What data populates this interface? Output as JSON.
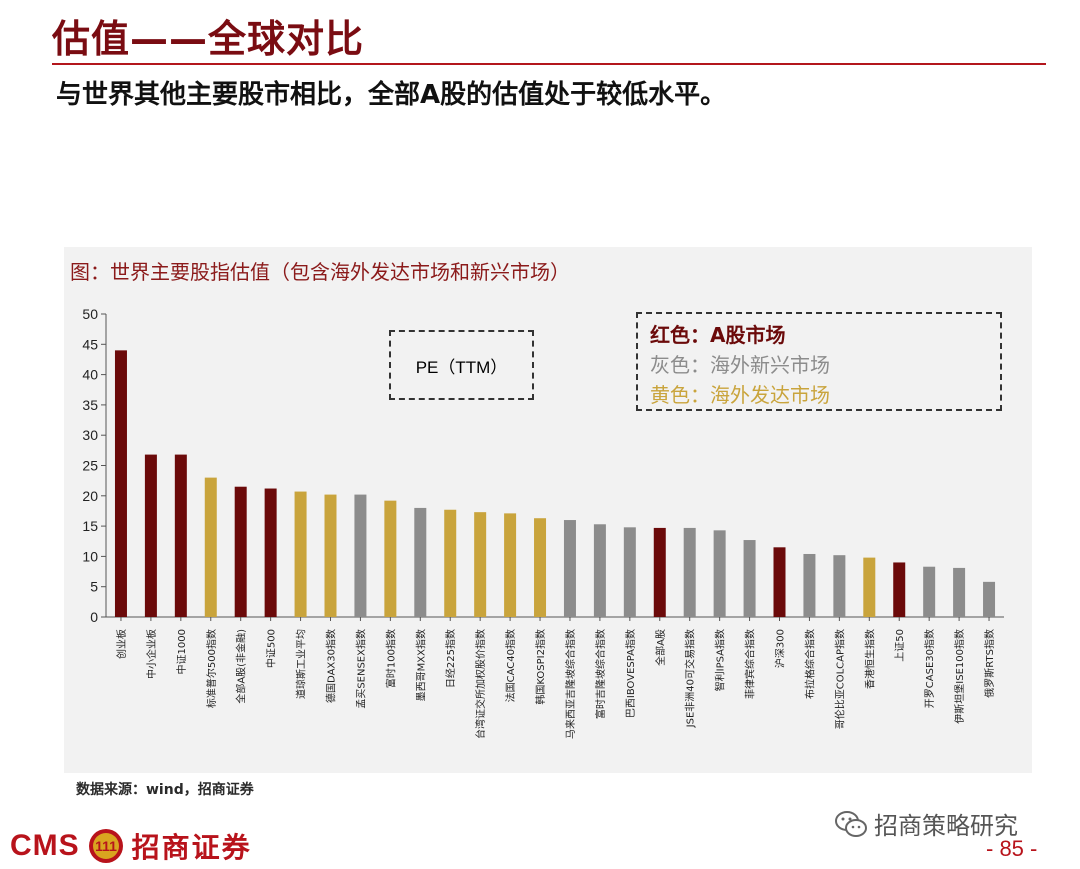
{
  "header": {
    "title": "估值——全球对比",
    "subtitle": "与世界其他主要股市相比，全部A股的估值处于较低水平。"
  },
  "chart_title": "图：世界主要股指估值（包含海外发达市场和新兴市场）",
  "annotation": {
    "pe_label": "PE（TTM）"
  },
  "legend": {
    "red": "红色：A股市场",
    "gray": "灰色：海外新兴市场",
    "gold": "黄色：海外发达市场"
  },
  "colors": {
    "red": "#6b0a0a",
    "gray": "#8c8c8c",
    "gold": "#c9a43c",
    "accent": "#b8131b"
  },
  "chart_data": {
    "type": "bar",
    "title": "图：世界主要股指估值（包含海外发达市场和新兴市场）",
    "ylabel": "PE（TTM）",
    "xlabel": "",
    "ylim": [
      0,
      50
    ],
    "yticks": [
      0,
      5,
      10,
      15,
      20,
      25,
      30,
      35,
      40,
      45,
      50
    ],
    "categories": [
      "创业板",
      "中小企业板",
      "中证1000",
      "标准普尔500指数",
      "全部A股(非金融)",
      "中证500",
      "道琼斯工业平均",
      "德国DAX30指数",
      "孟买SENSEX指数",
      "富时100指数",
      "墨西哥MXX指数",
      "日经225指数",
      "台湾证交所加权股价指数",
      "法国CAC40指数",
      "韩国KOSPI2指数",
      "马来西亚吉隆坡综合指数",
      "富时吉隆坡综合指数",
      "巴西IBOVESPA指数",
      "全部A股",
      "JSE非洲40可交易指数",
      "智利IPSA指数",
      "菲律宾综合指数",
      "沪深300",
      "布拉格综合指数",
      "哥伦比亚COLCAP指数",
      "香港恒生指数",
      "上证50",
      "开罗CASE30指数",
      "伊斯坦堡ISE100指数",
      "俄罗斯RTS指数"
    ],
    "values": [
      44,
      26.8,
      26.8,
      23,
      21.5,
      21.2,
      20.7,
      20.2,
      20.2,
      19.2,
      18,
      17.7,
      17.3,
      17.1,
      16.3,
      16,
      15.3,
      14.8,
      14.7,
      14.7,
      14.3,
      12.7,
      11.5,
      10.4,
      10.2,
      9.8,
      9,
      8.3,
      8.1,
      5.8
    ],
    "groups": [
      "A股市场",
      "A股市场",
      "A股市场",
      "海外发达市场",
      "A股市场",
      "A股市场",
      "海外发达市场",
      "海外发达市场",
      "海外新兴市场",
      "海外发达市场",
      "海外新兴市场",
      "海外发达市场",
      "海外发达市场",
      "海外发达市场",
      "海外发达市场",
      "海外新兴市场",
      "海外新兴市场",
      "海外新兴市场",
      "A股市场",
      "海外新兴市场",
      "海外新兴市场",
      "海外新兴市场",
      "A股市场",
      "海外新兴市场",
      "海外新兴市场",
      "海外发达市场",
      "A股市场",
      "海外新兴市场",
      "海外新兴市场",
      "海外新兴市场"
    ]
  },
  "source": "数据来源：wind，招商证券",
  "footer": {
    "cms": "CMS",
    "badge": "111",
    "company": "招商证券",
    "wechat": "招商策略研究",
    "page_number": "- 85 -"
  }
}
